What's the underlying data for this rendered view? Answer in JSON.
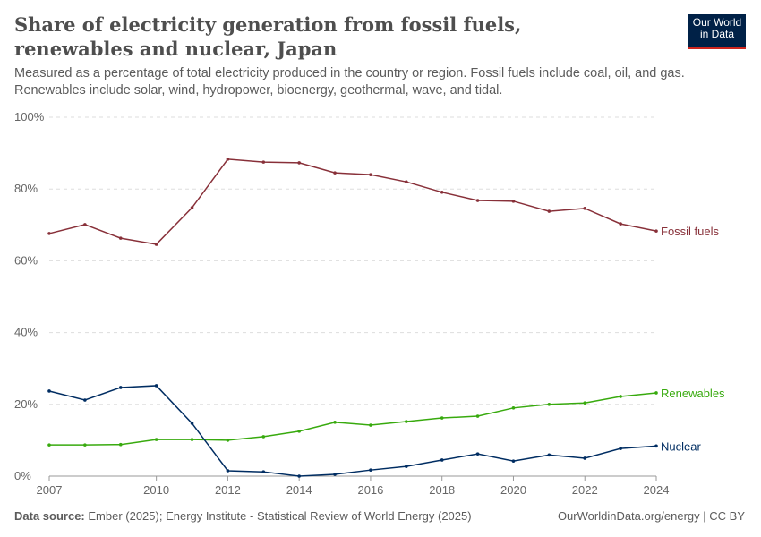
{
  "title": "Share of electricity generation from fossil fuels, renewables and nuclear, Japan",
  "subtitle": "Measured as a percentage of total electricity produced in the country or region. Fossil fuels include coal, oil, and gas. Renewables include solar, wind, hydropower, bioenergy, geothermal, wave, and tidal.",
  "logo": "Our World in Data",
  "footer": {
    "source_label": "Data source:",
    "source": " Ember (2025); Energy Institute - Statistical Review of World Energy (2025)",
    "right": "OurWorldinData.org/energy | CC BY"
  },
  "chart_data": {
    "type": "line",
    "x": [
      2007,
      2008,
      2009,
      2010,
      2011,
      2012,
      2013,
      2014,
      2015,
      2016,
      2017,
      2018,
      2019,
      2020,
      2021,
      2022,
      2023,
      2024
    ],
    "xticks": [
      "2007",
      "2010",
      "2012",
      "2014",
      "2016",
      "2018",
      "2020",
      "2022",
      "2024"
    ],
    "yticks": [
      "0%",
      "20%",
      "40%",
      "60%",
      "80%",
      "100%"
    ],
    "ylim": [
      0,
      100
    ],
    "grid": "horizontal dashed",
    "series": [
      {
        "name": "Fossil fuels",
        "color": "#883039",
        "values": [
          67.6,
          70.1,
          66.3,
          64.6,
          74.8,
          88.3,
          87.5,
          87.3,
          84.5,
          84.0,
          82.0,
          79.1,
          76.8,
          76.6,
          73.8,
          74.6,
          70.3,
          68.3
        ]
      },
      {
        "name": "Renewables",
        "color": "#38aa0e",
        "values": [
          8.7,
          8.7,
          8.8,
          10.2,
          10.2,
          10.0,
          11.0,
          12.5,
          15.0,
          14.2,
          15.2,
          16.2,
          16.7,
          19.0,
          20.0,
          20.4,
          22.2,
          23.2
        ]
      },
      {
        "name": "Nuclear",
        "color": "#002d62",
        "values": [
          23.7,
          21.2,
          24.7,
          25.2,
          14.7,
          1.5,
          1.2,
          0.0,
          0.5,
          1.7,
          2.7,
          4.5,
          6.2,
          4.2,
          5.9,
          5.0,
          7.7,
          8.4
        ]
      }
    ]
  }
}
